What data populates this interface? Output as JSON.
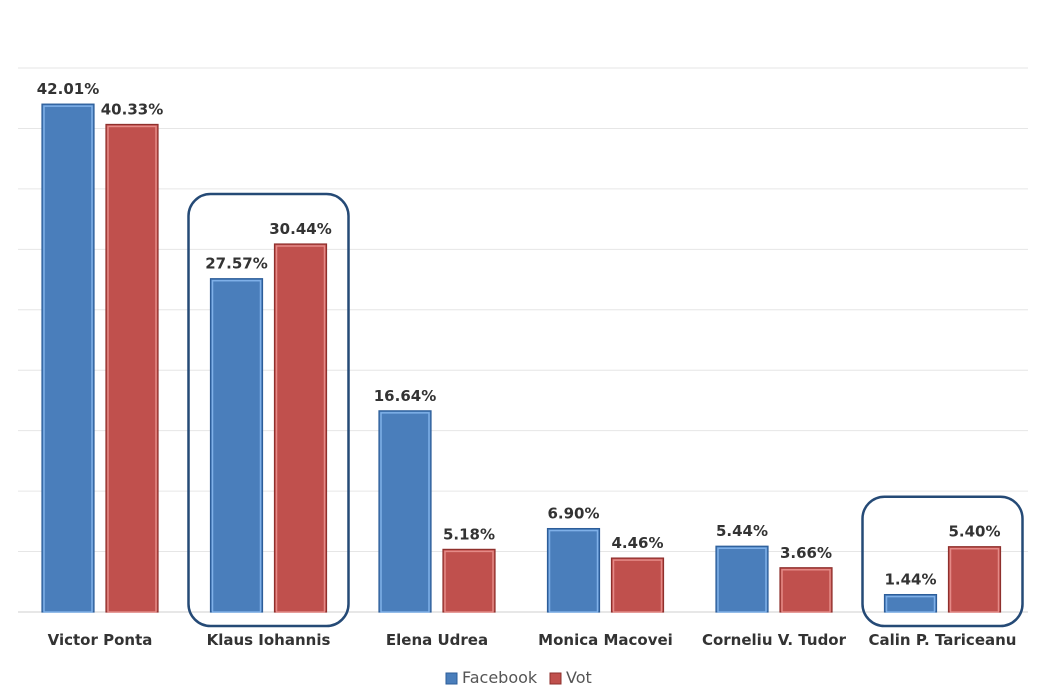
{
  "chart_data": {
    "type": "bar",
    "categories": [
      "Victor Ponta",
      "Klaus Iohannis",
      "Elena Udrea",
      "Monica Macovei",
      "Corneliu V. Tudor",
      "Calin P. Tariceanu"
    ],
    "series": [
      {
        "name": "Facebook",
        "values": [
          42.01,
          27.57,
          16.64,
          6.9,
          5.44,
          1.44
        ],
        "labels": [
          "42.01%",
          "27.57%",
          "16.64%",
          "6.90%",
          "5.44%",
          "1.44%"
        ],
        "color": "#4a7ebb"
      },
      {
        "name": "Vot",
        "values": [
          40.33,
          30.44,
          5.18,
          4.46,
          3.66,
          5.4
        ],
        "labels": [
          "40.33%",
          "30.44%",
          "5.18%",
          "4.46%",
          "3.66%",
          "5.40%"
        ],
        "color": "#c0504d"
      }
    ],
    "ylim": [
      0,
      45
    ],
    "grid": true,
    "legend": "bottom-center",
    "highlighted_categories": [
      "Klaus Iohannis",
      "Calin P. Tariceanu"
    ],
    "highlight_color": "#254a76"
  }
}
